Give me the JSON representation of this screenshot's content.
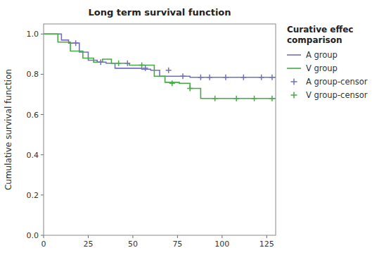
{
  "chart_data": {
    "type": "line",
    "title": "Long term survival function",
    "ylabel": "Cumulative survival function",
    "xlim": [
      0,
      130
    ],
    "ylim": [
      0.0,
      1.05
    ],
    "xticks": [
      0,
      25,
      50,
      75,
      100,
      125
    ],
    "yticks": [
      {
        "value": 0.0,
        "label": "0.0"
      },
      0.2,
      0.4,
      0.6,
      0.8,
      {
        "value": 1.0,
        "label": "1.0"
      }
    ],
    "grid": false,
    "legend": "right",
    "legend_title": "Curative effec\ncomparison",
    "series": [
      {
        "name": "A group",
        "type": "line",
        "color": "#7070bb",
        "x": [
          0,
          10,
          10,
          14,
          14,
          20,
          20,
          25,
          25,
          30,
          30,
          35,
          35,
          40,
          40,
          55,
          55,
          60,
          60,
          65,
          65,
          82,
          82,
          85,
          85,
          130
        ],
        "values": [
          1.0,
          1.0,
          0.97,
          0.97,
          0.955,
          0.955,
          0.91,
          0.91,
          0.87,
          0.87,
          0.86,
          0.86,
          0.855,
          0.855,
          0.83,
          0.83,
          0.825,
          0.825,
          0.82,
          0.82,
          0.79,
          0.79,
          0.785,
          0.785,
          0.785,
          0.785
        ]
      },
      {
        "name": "V group",
        "type": "line",
        "color": "#44aa44",
        "x": [
          0,
          8,
          8,
          15,
          15,
          22,
          22,
          28,
          28,
          33,
          33,
          38,
          38,
          48,
          48,
          62,
          62,
          68,
          68,
          76,
          76,
          82,
          82,
          88,
          88,
          130
        ],
        "values": [
          1.0,
          1.0,
          0.96,
          0.96,
          0.915,
          0.915,
          0.88,
          0.88,
          0.86,
          0.86,
          0.875,
          0.875,
          0.855,
          0.855,
          0.845,
          0.845,
          0.79,
          0.79,
          0.76,
          0.76,
          0.755,
          0.755,
          0.73,
          0.73,
          0.68,
          0.68
        ]
      },
      {
        "name": "A group-censor",
        "type": "scatter",
        "marker": "+",
        "color": "#7070bb",
        "x": [
          18,
          32,
          47,
          57,
          70,
          78,
          88,
          93,
          102,
          112,
          122,
          128
        ],
        "values": [
          0.955,
          0.86,
          0.855,
          0.83,
          0.82,
          0.79,
          0.785,
          0.785,
          0.785,
          0.785,
          0.785,
          0.785
        ]
      },
      {
        "name": "V group-censor",
        "type": "scatter",
        "marker": "+",
        "color": "#44aa44",
        "x": [
          42,
          55,
          72,
          82,
          96,
          108,
          118,
          128
        ],
        "values": [
          0.855,
          0.845,
          0.755,
          0.73,
          0.68,
          0.68,
          0.68,
          0.68
        ]
      }
    ]
  }
}
